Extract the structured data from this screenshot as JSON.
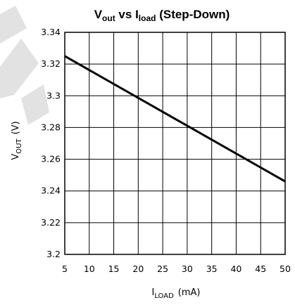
{
  "chart_data": {
    "type": "line",
    "title": {
      "v": "V",
      "v_sub": "out",
      "vs": " vs ",
      "i": "I",
      "i_sub": "load",
      "suffix": " (Step-Down)"
    },
    "xlabel": {
      "main": "I",
      "sub": "LOAD",
      "unit": "(mA)"
    },
    "ylabel": {
      "main": "V",
      "sub": "OUT",
      "unit": "(V)"
    },
    "xlim": [
      5,
      50
    ],
    "ylim": [
      3.2,
      3.34
    ],
    "xticks": [
      5,
      10,
      15,
      20,
      25,
      30,
      35,
      40,
      45,
      50
    ],
    "xtick_labels": [
      "5",
      "10",
      "15",
      "20",
      "25",
      "30",
      "35",
      "40",
      "45",
      "50"
    ],
    "yticks": [
      3.2,
      3.22,
      3.24,
      3.26,
      3.28,
      3.3,
      3.32,
      3.34
    ],
    "ytick_labels": [
      "3.2",
      "3.22",
      "3.24",
      "3.26",
      "3.28",
      "3.3",
      "3.32",
      "3.34"
    ],
    "grid": true,
    "series": [
      {
        "x": [
          5,
          50
        ],
        "y": [
          3.325,
          3.246
        ]
      }
    ],
    "colors": {
      "line": "#000000",
      "grid": "#000000",
      "watermark": "#d8d8d8"
    }
  }
}
